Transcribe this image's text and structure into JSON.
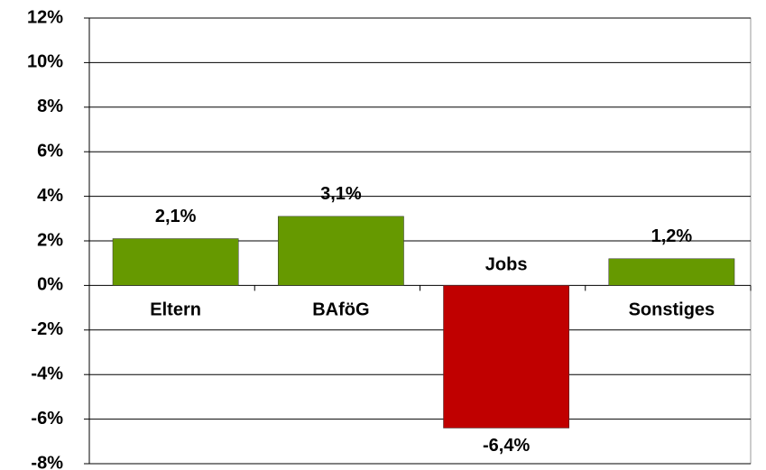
{
  "chart_data": {
    "type": "bar",
    "categories": [
      "Eltern",
      "BAföG",
      "Jobs",
      "Sonstiges"
    ],
    "values": [
      2.1,
      3.1,
      -6.4,
      1.2
    ],
    "value_labels": [
      "2,1%",
      "3,1%",
      "-6,4%",
      "1,2%"
    ],
    "colors": [
      "#669900",
      "#669900",
      "#c00000",
      "#669900"
    ],
    "ylim": [
      -8,
      12
    ],
    "yticks": [
      {
        "value": -8,
        "label": "-8%"
      },
      {
        "value": -6,
        "label": "-6%"
      },
      {
        "value": -4,
        "label": "-4%"
      },
      {
        "value": -2,
        "label": "-2%"
      },
      {
        "value": 0,
        "label": "0%"
      },
      {
        "value": 2,
        "label": "2%"
      },
      {
        "value": 4,
        "label": "4%"
      },
      {
        "value": 6,
        "label": "6%"
      },
      {
        "value": 8,
        "label": "8%"
      },
      {
        "value": 10,
        "label": "10%"
      },
      {
        "value": 12,
        "label": "12%"
      }
    ],
    "grid": true
  }
}
